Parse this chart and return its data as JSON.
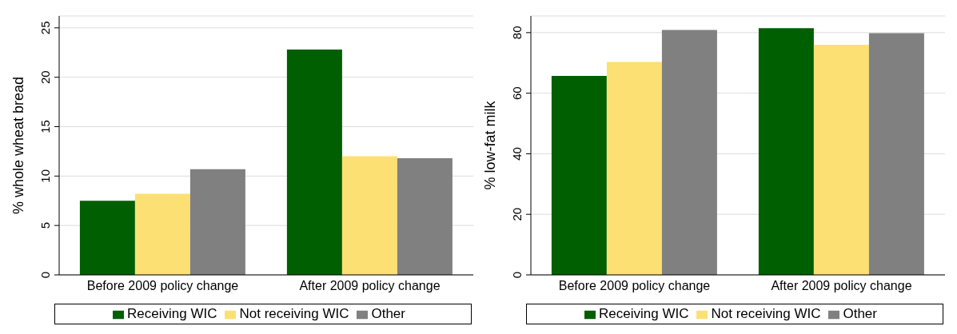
{
  "chart_data": [
    {
      "type": "bar",
      "categories": [
        "Before 2009 policy change",
        "After 2009 policy change"
      ],
      "ylabel": "% whole wheat bread",
      "ylim": [
        0,
        26.2
      ],
      "yticks": [
        0,
        5,
        10,
        15,
        20,
        25
      ],
      "grid": "y",
      "legend": "bottom",
      "series": [
        {
          "name": "Receiving WIC",
          "color": "#005f00",
          "values": [
            7.5,
            22.8
          ]
        },
        {
          "name": "Not receiving WIC",
          "color": "#fde073",
          "values": [
            8.2,
            12.0
          ]
        },
        {
          "name": "Other",
          "color": "#808080",
          "values": [
            10.7,
            11.8
          ]
        }
      ]
    },
    {
      "type": "bar",
      "categories": [
        "Before 2009 policy change",
        "After 2009 policy change"
      ],
      "ylabel": "% low-fat milk",
      "ylim": [
        0,
        85.5
      ],
      "yticks": [
        0,
        20,
        40,
        60,
        80
      ],
      "grid": "y",
      "legend": "bottom",
      "series": [
        {
          "name": "Receiving WIC",
          "color": "#005f00",
          "values": [
            65.7,
            81.5
          ]
        },
        {
          "name": "Not receiving WIC",
          "color": "#fde073",
          "values": [
            70.3,
            76.0
          ]
        },
        {
          "name": "Other",
          "color": "#808080",
          "values": [
            80.9,
            79.8
          ]
        }
      ]
    }
  ]
}
